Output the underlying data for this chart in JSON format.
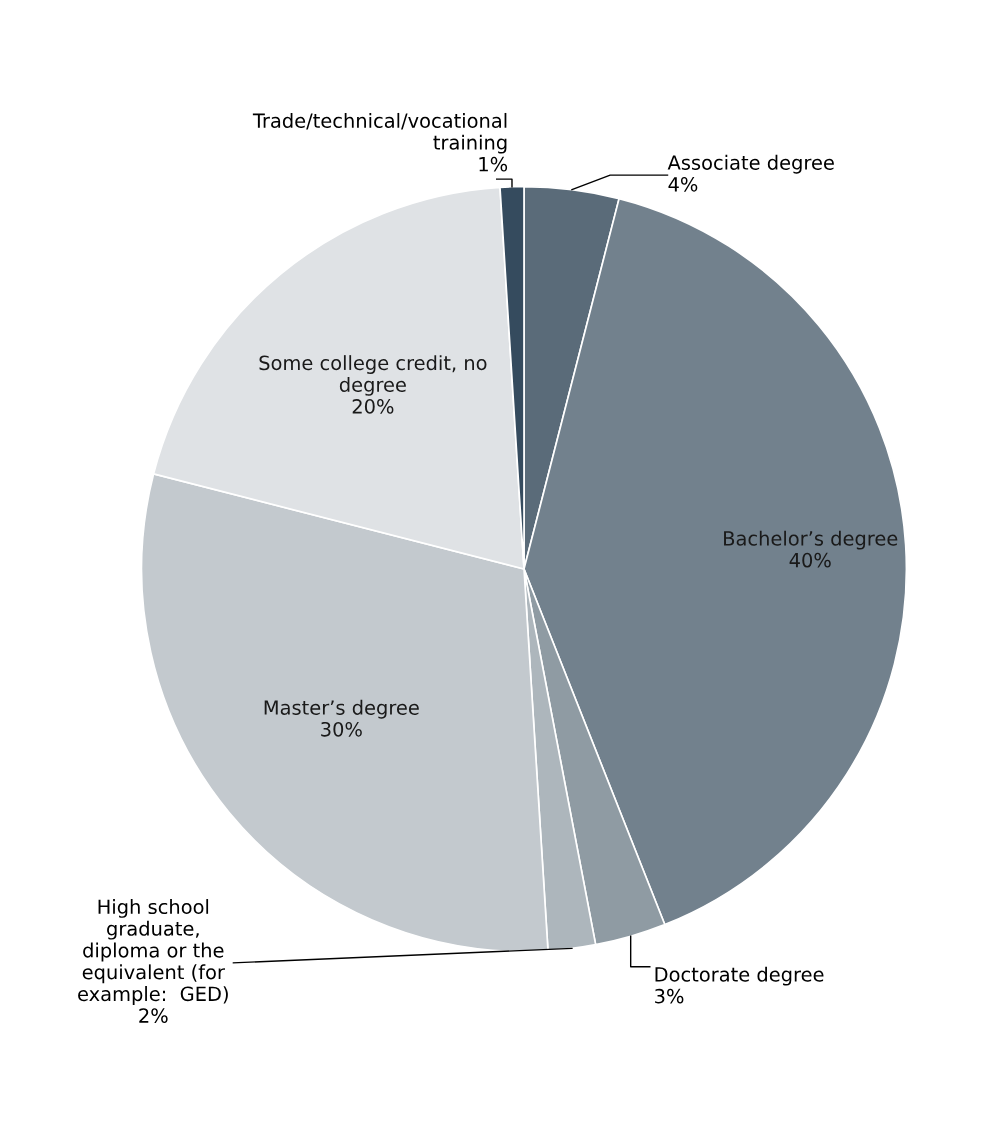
{
  "chart_data": {
    "type": "pie",
    "categories": [
      "Associate degree",
      "Bachelor’s degree",
      "Doctorate degree",
      "High school\ngraduate,\ndiploma or the\nequivalent (for\nexample:  GED)",
      "Master’s degree",
      "Some college credit, no\ndegree",
      "Trade/technical/vocational\ntraining"
    ],
    "values": [
      4,
      40,
      3,
      2,
      30,
      20,
      1
    ],
    "value_labels": [
      "4%",
      "40%",
      "3%",
      "2%",
      "30%",
      "20%",
      "1%"
    ],
    "colors": [
      "#5a6b79",
      "#72818d",
      "#8f9ba3",
      "#adb6bc",
      "#c3c9ce",
      "#dfe2e5",
      "#354b5e"
    ]
  }
}
